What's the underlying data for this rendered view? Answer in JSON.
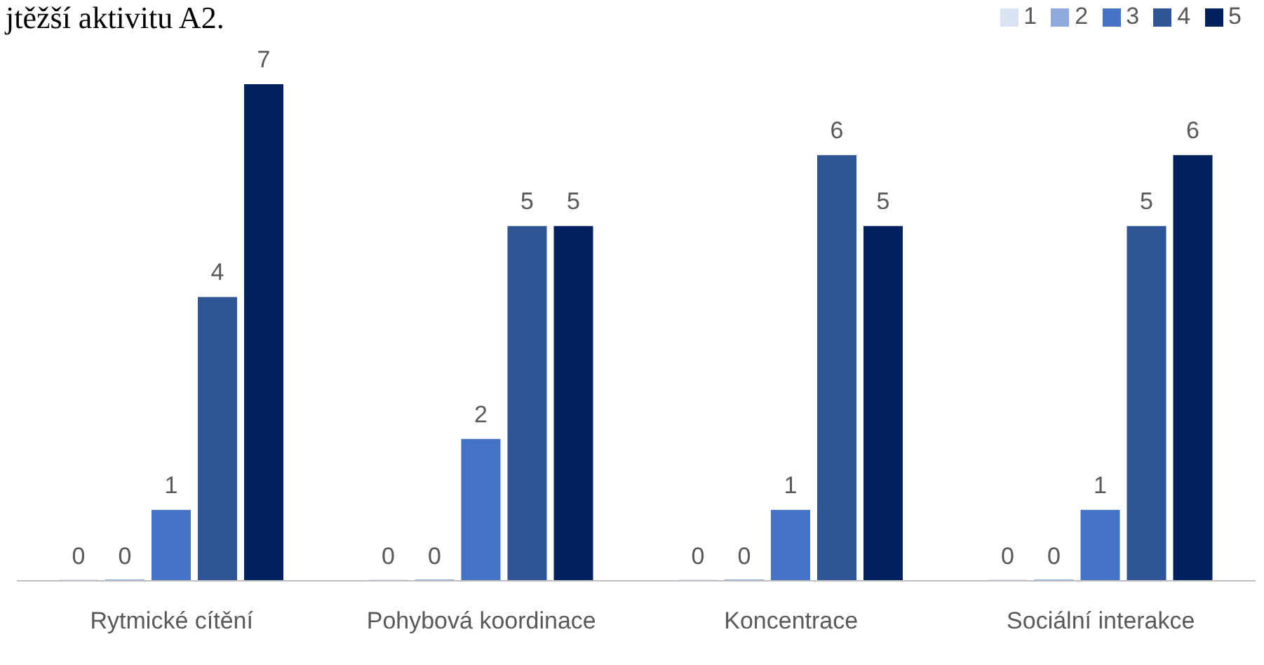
{
  "chart_data": {
    "type": "bar",
    "title": "jtěžší aktivitu A2.",
    "categories": [
      "Rytmické cítění",
      "Pohybová koordinace",
      "Koncentrace",
      "Sociální interakce"
    ],
    "series": [
      {
        "name": "1",
        "color": "#dae3f3",
        "values": [
          0,
          0,
          0,
          0
        ]
      },
      {
        "name": "2",
        "color": "#8faadc",
        "values": [
          0,
          0,
          0,
          0
        ]
      },
      {
        "name": "3",
        "color": "#4472c4",
        "values": [
          1,
          2,
          1,
          1
        ]
      },
      {
        "name": "4",
        "color": "#2f5597",
        "values": [
          4,
          5,
          6,
          5
        ]
      },
      {
        "name": "5",
        "color": "#002060",
        "values": [
          7,
          5,
          5,
          6
        ]
      }
    ],
    "ylim": [
      0,
      7
    ],
    "data_labels": true,
    "legend": "top right",
    "grid": false
  }
}
